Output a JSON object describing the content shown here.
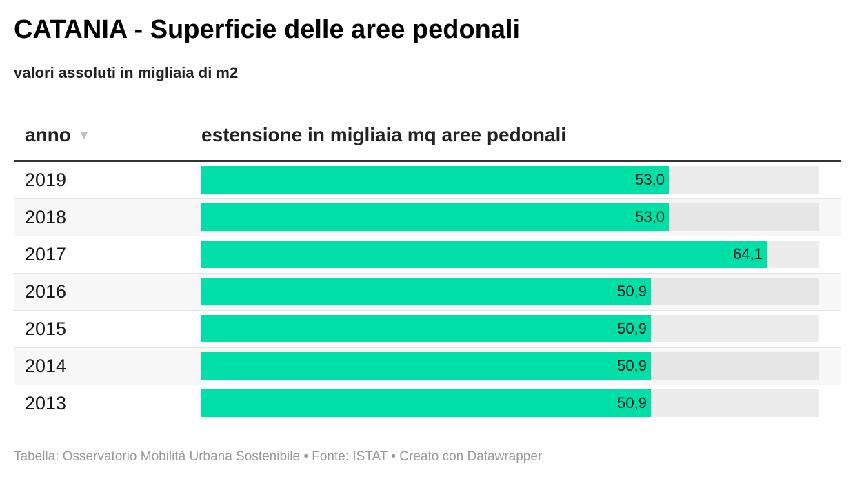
{
  "title": "CATANIA - Superficie delle aree pedonali",
  "subtitle": "valori assoluti in migliaia di m2",
  "table": {
    "col_year_label": "anno",
    "col_value_label": "estensione in migliaia mq aree pedonali",
    "sort_icon": "sort-desc-triangle"
  },
  "chart_data": {
    "type": "table",
    "columns": [
      "anno",
      "estensione in migliaia mq aree pedonali"
    ],
    "categories": [
      "2019",
      "2018",
      "2017",
      "2016",
      "2015",
      "2014",
      "2013"
    ],
    "values": [
      53.0,
      53.0,
      64.1,
      50.9,
      50.9,
      50.9,
      50.9
    ],
    "value_labels": [
      "53,0",
      "53,0",
      "64,1",
      "50,9",
      "50,9",
      "50,9",
      "50,9"
    ],
    "bar_max": 70,
    "bar_color": "#00dfa7",
    "track_color": "#ececec"
  },
  "footer": "Tabella: Osservatorio Mobilità Urbana Sostenibile • Fonte: ISTAT • Creato con Datawrapper"
}
